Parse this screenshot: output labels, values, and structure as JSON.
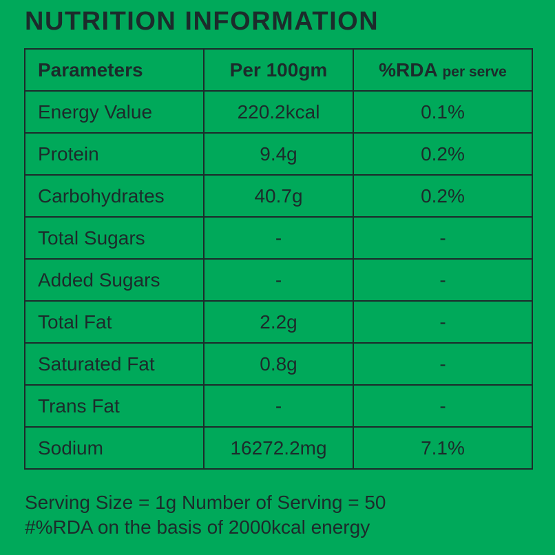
{
  "header": {
    "title": "NUTRITION INFORMATION"
  },
  "table": {
    "columns": [
      "Parameters",
      "Per 100gm",
      {
        "main": "%RDA",
        "sub": "per serve"
      }
    ],
    "rows": [
      [
        "Energy Value",
        "220.2kcal",
        "0.1%"
      ],
      [
        "Protein",
        "9.4g",
        "0.2%"
      ],
      [
        "Carbohydrates",
        "40.7g",
        "0.2%"
      ],
      [
        "Total Sugars",
        "-",
        "-"
      ],
      [
        "Added Sugars",
        "-",
        "-"
      ],
      [
        "Total Fat",
        "2.2g",
        "-"
      ],
      [
        "Saturated Fat",
        "0.8g",
        "-"
      ],
      [
        "Trans Fat",
        "-",
        "-"
      ],
      [
        "Sodium",
        "16272.2mg",
        "7.1%"
      ]
    ]
  },
  "footer": {
    "lines": [
      "Serving Size = 1g Number of Serving = 50",
      "#%RDA on the basis of 2000kcal energy"
    ]
  }
}
